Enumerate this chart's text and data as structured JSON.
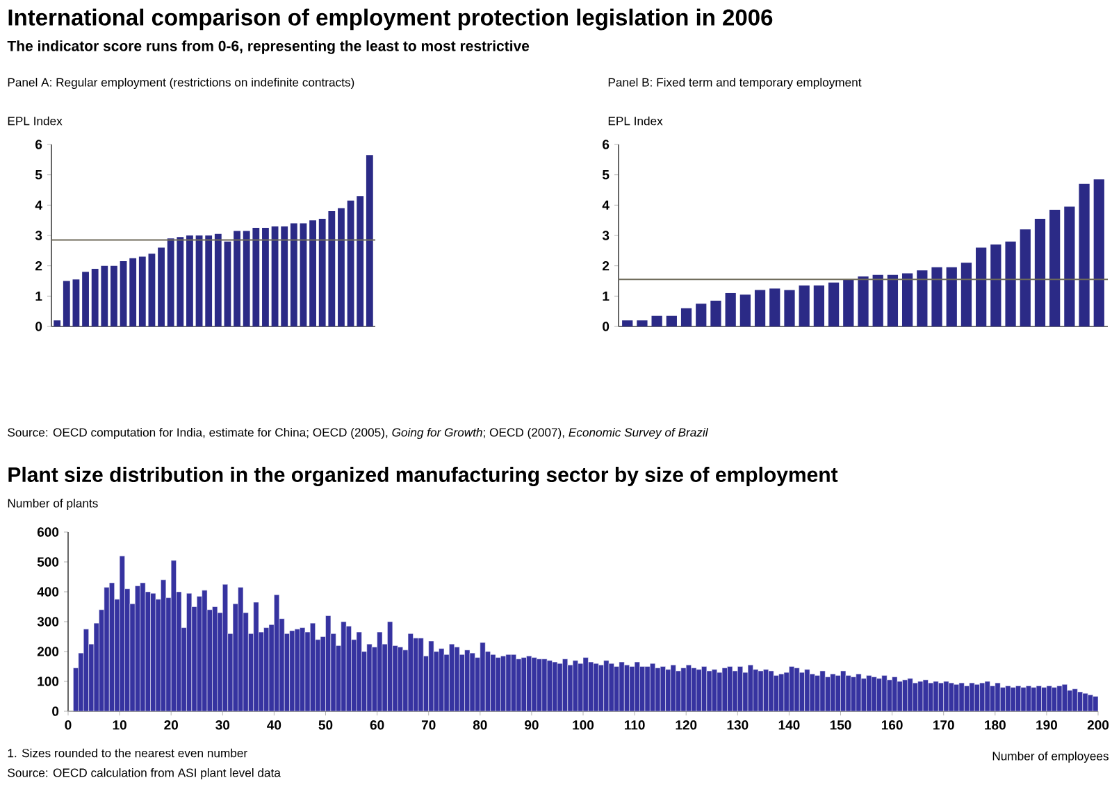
{
  "chart_data": [
    {
      "type": "bar",
      "title": "Panel A: Regular employment (restrictions on indefinite contracts)",
      "ylabel": "EPL Index",
      "annotations": [
        "International comparison of employment protection legislation in 2006",
        "The indicator score runs from 0-6, representing the least to most restrictive"
      ],
      "categories": [
        null,
        null,
        null,
        null,
        null,
        null,
        null,
        null,
        null,
        null,
        null,
        null,
        null,
        null,
        null,
        null,
        null,
        null,
        null,
        null,
        null,
        null,
        null,
        null,
        null,
        null,
        null,
        null,
        null,
        null,
        null,
        null,
        null,
        null
      ],
      "values": [
        0.2,
        1.5,
        1.55,
        1.8,
        1.9,
        2.0,
        2.0,
        2.15,
        2.25,
        2.3,
        2.4,
        2.6,
        2.9,
        2.95,
        3.0,
        3.0,
        3.0,
        3.05,
        2.8,
        3.15,
        3.15,
        3.25,
        3.25,
        3.3,
        3.3,
        3.4,
        3.4,
        3.5,
        3.55,
        3.8,
        3.9,
        4.15,
        4.3,
        5.65
      ],
      "color": "#2b2a86",
      "ylim": [
        0,
        6
      ],
      "yticks": [
        0,
        1,
        2,
        3,
        4,
        5,
        6
      ],
      "ref_lines": [
        {
          "axis": "y",
          "value": 2.85,
          "color": "#6e6a5a"
        }
      ]
    },
    {
      "type": "bar",
      "title": "Panel B: Fixed term and temporary employment",
      "ylabel": "EPL Index",
      "annotations": [
        "Source: OECD computation for India, estimate for China; OECD (2005), *Going for Growth*; OECD (2007), *Economic Survey of Brazil*"
      ],
      "categories": [
        null,
        null,
        null,
        null,
        null,
        null,
        null,
        null,
        null,
        null,
        null,
        null,
        null,
        null,
        null,
        null,
        null,
        null,
        null,
        null,
        null,
        null,
        null,
        null,
        null,
        null,
        null,
        null,
        null,
        null,
        null,
        null,
        null
      ],
      "values": [
        0.2,
        0.2,
        0.35,
        0.35,
        0.6,
        0.75,
        0.85,
        1.1,
        1.05,
        1.2,
        1.25,
        1.2,
        1.35,
        1.35,
        1.45,
        1.55,
        1.65,
        1.7,
        1.7,
        1.75,
        1.85,
        1.95,
        1.95,
        2.1,
        2.6,
        2.7,
        2.8,
        3.2,
        3.55,
        3.85,
        3.95,
        4.7,
        4.85
      ],
      "color": "#2b2a86",
      "ylim": [
        0,
        6
      ],
      "yticks": [
        0,
        1,
        2,
        3,
        4,
        5,
        6
      ],
      "ref_lines": [
        {
          "axis": "y",
          "value": 1.55,
          "color": "#6e6a5a"
        }
      ]
    },
    {
      "type": "histogram",
      "title": "Plant size distribution in the organized manufacturing sector by size of employment",
      "ylabel": "Number of plants",
      "xlabel": "Number of employees",
      "annotations": [
        "1. Sizes rounded to the nearest even number",
        "Source: OECD calculation from ASI plant level data"
      ],
      "bins": [
        0,
        1,
        2,
        3,
        4,
        5,
        6,
        7,
        8,
        9,
        10,
        11,
        12,
        13,
        14,
        15,
        16,
        17,
        18,
        19,
        20,
        21,
        22,
        23,
        24,
        25,
        26,
        27,
        28,
        29,
        30,
        31,
        32,
        33,
        34,
        35,
        36,
        37,
        38,
        39,
        40,
        41,
        42,
        43,
        44,
        45,
        46,
        47,
        48,
        49,
        50,
        51,
        52,
        53,
        54,
        55,
        56,
        57,
        58,
        59,
        60,
        61,
        62,
        63,
        64,
        65,
        66,
        67,
        68,
        69,
        70,
        71,
        72,
        73,
        74,
        75,
        76,
        77,
        78,
        79,
        80,
        81,
        82,
        83,
        84,
        85,
        86,
        87,
        88,
        89,
        90,
        91,
        92,
        93,
        94,
        95,
        96,
        97,
        98,
        99,
        100,
        101,
        102,
        103,
        104,
        105,
        106,
        107,
        108,
        109,
        110,
        111,
        112,
        113,
        114,
        115,
        116,
        117,
        118,
        119,
        120,
        121,
        122,
        123,
        124,
        125,
        126,
        127,
        128,
        129,
        130,
        131,
        132,
        133,
        134,
        135,
        136,
        137,
        138,
        139,
        140,
        141,
        142,
        143,
        144,
        145,
        146,
        147,
        148,
        149,
        150,
        151,
        152,
        153,
        154,
        155,
        156,
        157,
        158,
        159,
        160,
        161,
        162,
        163,
        164,
        165,
        166,
        167,
        168,
        169,
        170,
        171,
        172,
        173,
        174,
        175,
        176,
        177,
        178,
        179,
        180,
        181,
        182,
        183,
        184,
        185,
        186,
        187,
        188,
        189,
        190,
        191,
        192,
        193,
        194,
        195,
        196,
        197,
        198,
        199,
        200
      ],
      "values": [
        0,
        145,
        195,
        275,
        225,
        295,
        340,
        415,
        430,
        375,
        520,
        410,
        360,
        420,
        430,
        400,
        395,
        375,
        440,
        380,
        505,
        400,
        280,
        395,
        350,
        385,
        405,
        340,
        350,
        330,
        425,
        260,
        360,
        415,
        330,
        260,
        365,
        265,
        280,
        290,
        390,
        310,
        260,
        270,
        275,
        280,
        265,
        295,
        240,
        250,
        320,
        260,
        220,
        300,
        285,
        240,
        265,
        200,
        225,
        215,
        265,
        225,
        300,
        220,
        215,
        205,
        260,
        245,
        245,
        185,
        235,
        200,
        210,
        190,
        225,
        215,
        190,
        205,
        195,
        180,
        230,
        200,
        190,
        180,
        185,
        190,
        190,
        175,
        180,
        185,
        180,
        175,
        175,
        170,
        165,
        160,
        175,
        155,
        170,
        160,
        180,
        165,
        160,
        155,
        170,
        160,
        150,
        165,
        155,
        150,
        165,
        150,
        150,
        160,
        145,
        150,
        140,
        155,
        135,
        145,
        155,
        145,
        140,
        150,
        135,
        140,
        130,
        145,
        150,
        135,
        150,
        130,
        155,
        140,
        135,
        140,
        135,
        120,
        125,
        130,
        150,
        145,
        130,
        140,
        125,
        120,
        135,
        115,
        125,
        120,
        135,
        120,
        115,
        125,
        110,
        120,
        115,
        110,
        120,
        105,
        115,
        100,
        105,
        110,
        95,
        100,
        105,
        95,
        100,
        95,
        100,
        95,
        90,
        95,
        85,
        95,
        90,
        95,
        100,
        85,
        95,
        80,
        85,
        80,
        85,
        80,
        85,
        80,
        85,
        80,
        85,
        80,
        85,
        90,
        70,
        75,
        65,
        60,
        55,
        50
      ],
      "color": "#3633a0",
      "xlim": [
        0,
        200
      ],
      "xticks": [
        0,
        10,
        20,
        30,
        40,
        50,
        60,
        70,
        80,
        90,
        100,
        110,
        120,
        130,
        140,
        150,
        160,
        170,
        180,
        190,
        200
      ],
      "ylim": [
        0,
        600
      ],
      "yticks": [
        0,
        100,
        200,
        300,
        400,
        500,
        600
      ]
    }
  ]
}
